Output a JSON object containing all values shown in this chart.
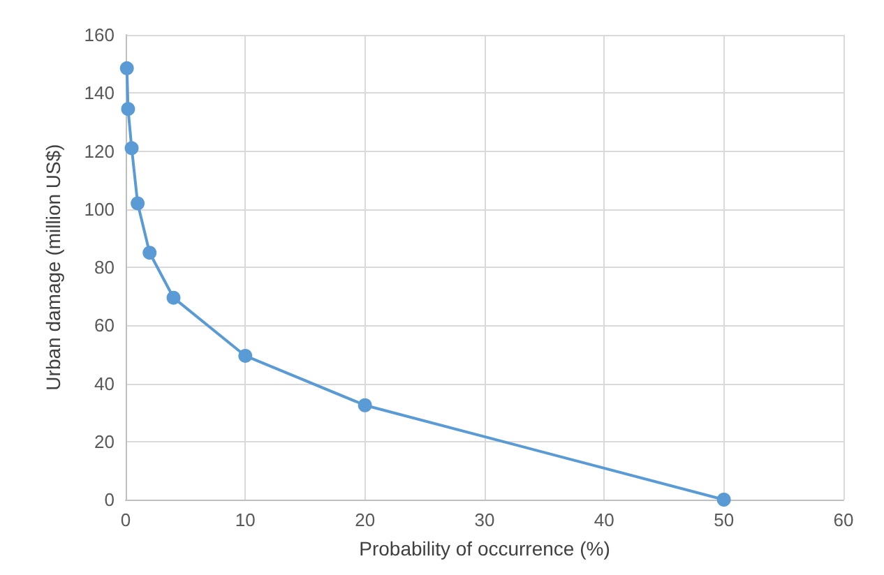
{
  "chart_data": {
    "type": "line",
    "xlabel": "Probability of occurrence (%)",
    "ylabel": "Urban damage (million US$)",
    "x": [
      0.1,
      0.2,
      0.5,
      1,
      2,
      4,
      10,
      20,
      50
    ],
    "series": [
      {
        "color": "#5b9bd5",
        "values": [
          148.5,
          134.5,
          121,
          102,
          85,
          69.5,
          49.5,
          32.5,
          0
        ]
      }
    ],
    "xlim": [
      0,
      60
    ],
    "xticks": [
      0,
      10,
      20,
      30,
      40,
      50,
      60
    ],
    "ylim": [
      0,
      160
    ],
    "yticks": [
      0,
      20,
      40,
      60,
      80,
      100,
      120,
      140,
      160
    ],
    "grid": true,
    "marker": "circle",
    "line_style": "solid"
  }
}
